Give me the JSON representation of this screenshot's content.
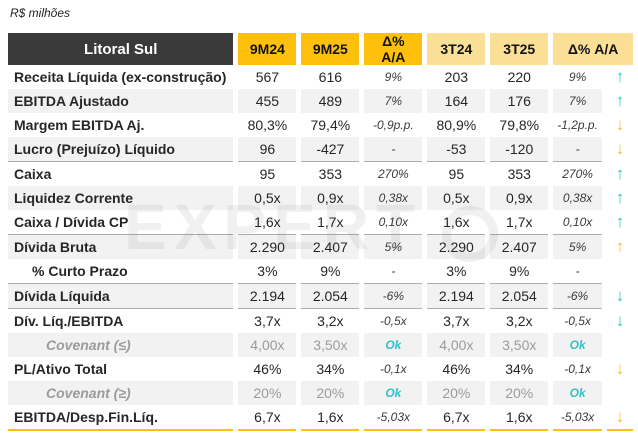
{
  "subtitle": "R$ milhões",
  "watermark": {
    "text": "EXPERT"
  },
  "colors": {
    "header_dark": "#3A3A3A",
    "accent_amber": "#FFC00D",
    "light_amber": "#FBDF96",
    "teal": "#2EC4C9",
    "arrow_amber": "#FFB82E",
    "stripe_gray": "#F2F2F2"
  },
  "table": {
    "title": "Litoral Sul",
    "columns": [
      "9M24",
      "9M25",
      "Δ% A/A",
      "3T24",
      "3T25",
      "Δ% A/A"
    ],
    "rows": [
      {
        "label": "Receita Líquida (ex-construção)",
        "v": [
          "567",
          "616",
          "9%",
          "203",
          "220",
          "9%"
        ],
        "arrow": "↑",
        "arrow_color": "#2EC4C9"
      },
      {
        "label": "EBITDA Ajustado",
        "v": [
          "455",
          "489",
          "7%",
          "164",
          "176",
          "7%"
        ],
        "arrow": "↑",
        "arrow_color": "#2EC4C9"
      },
      {
        "label": "Margem EBITDA Aj.",
        "v": [
          "80,3%",
          "79,4%",
          "-0,9p.p.",
          "80,9%",
          "79,8%",
          "-1,2p.p."
        ],
        "arrow": "↓",
        "arrow_color": "#FFB82E"
      },
      {
        "label": "Lucro (Prejuízo) Líquido",
        "v": [
          "96",
          "-427",
          "-",
          "-53",
          "-120",
          "-"
        ],
        "arrow": "↓",
        "arrow_color": "#FFB82E"
      },
      {
        "label": "Caixa",
        "v": [
          "95",
          "353",
          "270%",
          "95",
          "353",
          "270%"
        ],
        "arrow": "↑",
        "arrow_color": "#2EC4C9"
      },
      {
        "label": "Liquidez Corrente",
        "v": [
          "0,5x",
          "0,9x",
          "0,38x",
          "0,5x",
          "0,9x",
          "0,38x"
        ],
        "arrow": "↑",
        "arrow_color": "#2EC4C9"
      },
      {
        "label": "Caixa / Dívida CP",
        "v": [
          "1,6x",
          "1,7x",
          "0,10x",
          "1,6x",
          "1,7x",
          "0,10x"
        ],
        "arrow": "↑",
        "arrow_color": "#2EC4C9"
      },
      {
        "label": "Dívida Bruta",
        "v": [
          "2.290",
          "2.407",
          "5%",
          "2.290",
          "2.407",
          "5%"
        ],
        "arrow": "↑",
        "arrow_color": "#FFB82E"
      },
      {
        "label": "% Curto Prazo",
        "v": [
          "3%",
          "9%",
          "-",
          "3%",
          "9%",
          "-"
        ],
        "arrow": "",
        "arrow_color": ""
      },
      {
        "label": "Dívida Líquida",
        "v": [
          "2.194",
          "2.054",
          "-6%",
          "2.194",
          "2.054",
          "-6%"
        ],
        "arrow": "↓",
        "arrow_color": "#2EC4C9"
      },
      {
        "label": "Dív. Líq./EBITDA",
        "v": [
          "3,7x",
          "3,2x",
          "-0,5x",
          "3,7x",
          "3,2x",
          "-0,5x"
        ],
        "arrow": "↓",
        "arrow_color": "#2EC4C9"
      },
      {
        "label": "Covenant (≤)",
        "v": [
          "4,00x",
          "3,50x",
          "Ok",
          "4,00x",
          "3,50x",
          "Ok"
        ],
        "arrow": "",
        "arrow_color": ""
      },
      {
        "label": "PL/Ativo Total",
        "v": [
          "46%",
          "34%",
          "-0,1x",
          "46%",
          "34%",
          "-0,1x"
        ],
        "arrow": "↓",
        "arrow_color": "#FFB82E"
      },
      {
        "label": "Covenant (≥)",
        "v": [
          "20%",
          "20%",
          "Ok",
          "20%",
          "20%",
          "Ok"
        ],
        "arrow": "",
        "arrow_color": ""
      },
      {
        "label": "EBITDA/Desp.Fin.Líq.",
        "v": [
          "6,7x",
          "1,6x",
          "-5,03x",
          "6,7x",
          "1,6x",
          "-5,03x"
        ],
        "arrow": "↓",
        "arrow_color": "#FFB82E"
      }
    ]
  }
}
